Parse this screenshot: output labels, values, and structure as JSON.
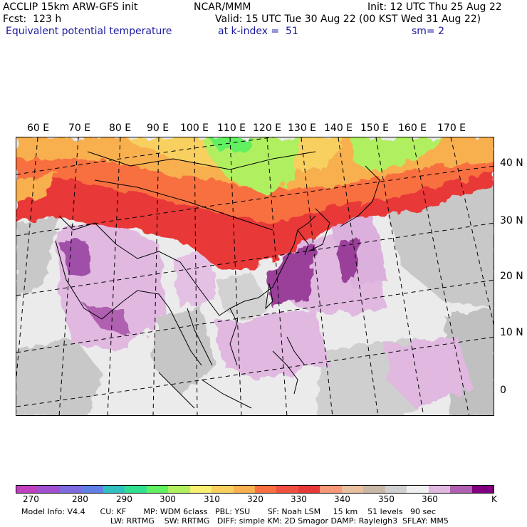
{
  "header": {
    "model": "ACCLIP 15km ARW-GFS init",
    "center": "NCAR/MMM",
    "init": "Init: 12 UTC Thu 25 Aug 22",
    "fcst": "Fcst:  123 h",
    "valid": "Valid: 15 UTC Tue 30 Aug 22 (00 KST Wed 31 Aug 22)",
    "field": "Equivalent potential temperature",
    "level": "at k-index =  51",
    "smooth": "sm= 2"
  },
  "map": {
    "lon_labels": [
      "60 E",
      "70 E",
      "80 E",
      "90 E",
      "100 E",
      "110 E",
      "120 E",
      "130 E",
      "140 E",
      "150 E",
      "160 E",
      "170 E"
    ],
    "lat_labels": [
      "40 N",
      "30 N",
      "20 N",
      "10 N",
      "0"
    ]
  },
  "colorbar": {
    "colors": [
      "#c040c0",
      "#a050d0",
      "#7f6ae0",
      "#6080e8",
      "#30c0c0",
      "#30e090",
      "#60f060",
      "#b0f060",
      "#f8f070",
      "#f8d060",
      "#f8b050",
      "#f87040",
      "#f05040",
      "#e83838",
      "#f89878",
      "#e8c0a0",
      "#c8b8a8",
      "#d0d0d0",
      "#f0f0f0",
      "#e0b8e0",
      "#b060b0",
      "#800080"
    ],
    "ticks": [
      "270",
      "280",
      "290",
      "300",
      "310",
      "320",
      "330",
      "340",
      "350",
      "360"
    ],
    "unit": "K"
  },
  "footer": {
    "line1": "Model Info: V4.4      CU: KF       MP: WDM 6class   PBL: YSU       SF: Noah LSM     15 km    51 levels   90 sec",
    "line2": "LW: RRTMG    SW: RRTMG   DIFF: simple KM: 2D Smagor DAMP: Rayleigh3  SFLAY: MM5"
  }
}
